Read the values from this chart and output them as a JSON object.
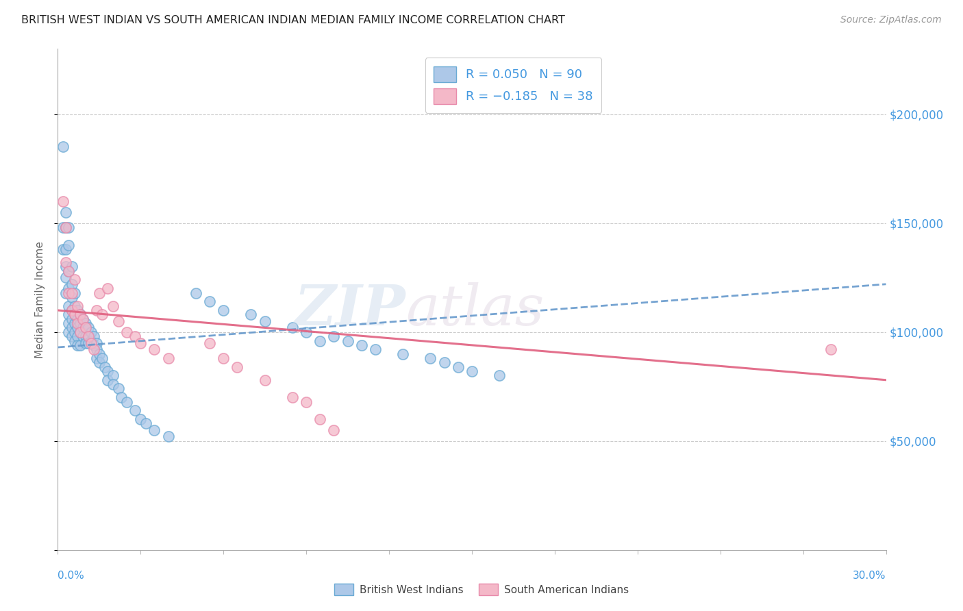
{
  "title": "BRITISH WEST INDIAN VS SOUTH AMERICAN INDIAN MEDIAN FAMILY INCOME CORRELATION CHART",
  "source": "Source: ZipAtlas.com",
  "ylabel": "Median Family Income",
  "xlim": [
    0.0,
    0.3
  ],
  "ylim": [
    0,
    230000
  ],
  "yticks": [
    0,
    50000,
    100000,
    150000,
    200000
  ],
  "ytick_labels": [
    "",
    "$50,000",
    "$100,000",
    "$150,000",
    "$200,000"
  ],
  "xticks": [
    0.0,
    0.03,
    0.06,
    0.09,
    0.12,
    0.15,
    0.18,
    0.21,
    0.24,
    0.27,
    0.3
  ],
  "R1": 0.05,
  "N1": 90,
  "R2": -0.185,
  "N2": 38,
  "color_blue_fill": "#adc8e8",
  "color_blue_edge": "#6aaad4",
  "color_pink_fill": "#f4b8c8",
  "color_pink_edge": "#e88aaa",
  "color_blue_text": "#4499e0",
  "color_pink_text": "#e0607a",
  "color_trend_blue": "#6699cc",
  "color_trend_pink": "#e06080",
  "blue_x": [
    0.002,
    0.002,
    0.002,
    0.003,
    0.003,
    0.003,
    0.003,
    0.003,
    0.003,
    0.004,
    0.004,
    0.004,
    0.004,
    0.004,
    0.004,
    0.004,
    0.004,
    0.005,
    0.005,
    0.005,
    0.005,
    0.005,
    0.005,
    0.005,
    0.006,
    0.006,
    0.006,
    0.006,
    0.006,
    0.006,
    0.007,
    0.007,
    0.007,
    0.007,
    0.007,
    0.008,
    0.008,
    0.008,
    0.008,
    0.009,
    0.009,
    0.009,
    0.01,
    0.01,
    0.01,
    0.01,
    0.011,
    0.011,
    0.011,
    0.012,
    0.012,
    0.013,
    0.013,
    0.014,
    0.014,
    0.014,
    0.015,
    0.015,
    0.016,
    0.017,
    0.018,
    0.018,
    0.02,
    0.02,
    0.022,
    0.023,
    0.025,
    0.028,
    0.03,
    0.032,
    0.035,
    0.04,
    0.05,
    0.055,
    0.06,
    0.07,
    0.075,
    0.085,
    0.09,
    0.095,
    0.1,
    0.105,
    0.11,
    0.115,
    0.125,
    0.135,
    0.14,
    0.145,
    0.15,
    0.16
  ],
  "blue_y": [
    185000,
    148000,
    138000,
    155000,
    148000,
    138000,
    130000,
    125000,
    118000,
    148000,
    140000,
    128000,
    120000,
    112000,
    108000,
    104000,
    100000,
    130000,
    122000,
    116000,
    110000,
    106000,
    102000,
    98000,
    118000,
    112000,
    108000,
    104000,
    100000,
    96000,
    110000,
    106000,
    102000,
    98000,
    94000,
    108000,
    104000,
    100000,
    94000,
    106000,
    102000,
    98000,
    104000,
    102000,
    98000,
    95000,
    102000,
    98000,
    95000,
    100000,
    96000,
    98000,
    94000,
    95000,
    92000,
    88000,
    90000,
    86000,
    88000,
    84000,
    82000,
    78000,
    80000,
    76000,
    74000,
    70000,
    68000,
    64000,
    60000,
    58000,
    55000,
    52000,
    118000,
    114000,
    110000,
    108000,
    105000,
    102000,
    100000,
    96000,
    98000,
    96000,
    94000,
    92000,
    90000,
    88000,
    86000,
    84000,
    82000,
    80000
  ],
  "pink_x": [
    0.002,
    0.003,
    0.003,
    0.004,
    0.004,
    0.005,
    0.005,
    0.006,
    0.006,
    0.007,
    0.007,
    0.008,
    0.008,
    0.009,
    0.01,
    0.011,
    0.012,
    0.013,
    0.014,
    0.015,
    0.016,
    0.018,
    0.02,
    0.022,
    0.025,
    0.028,
    0.03,
    0.035,
    0.04,
    0.055,
    0.06,
    0.065,
    0.075,
    0.085,
    0.09,
    0.095,
    0.1,
    0.28
  ],
  "pink_y": [
    160000,
    148000,
    132000,
    128000,
    118000,
    118000,
    110000,
    124000,
    108000,
    112000,
    104000,
    108000,
    100000,
    106000,
    102000,
    98000,
    95000,
    92000,
    110000,
    118000,
    108000,
    120000,
    112000,
    105000,
    100000,
    98000,
    95000,
    92000,
    88000,
    95000,
    88000,
    84000,
    78000,
    70000,
    68000,
    60000,
    55000,
    92000
  ]
}
